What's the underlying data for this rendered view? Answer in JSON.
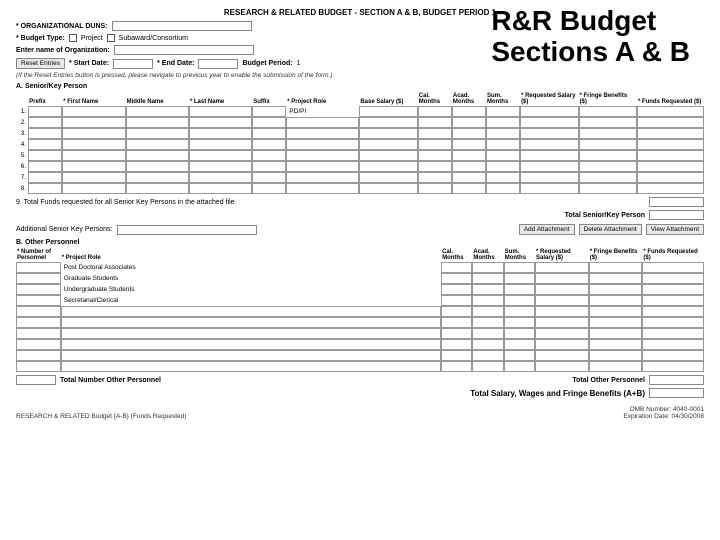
{
  "header": {
    "title": "RESEARCH & RELATED BUDGET - SECTION A & B, BUDGET PERIOD 1"
  },
  "overlay": {
    "line1": "R&R Budget",
    "line2": "Sections A & B"
  },
  "org": {
    "duns_label": "* ORGANIZATIONAL DUNS:",
    "budget_type_label": "* Budget Type:",
    "project_label": "Project",
    "subaward_label": "Subaward/Consortium",
    "enter_name_label": "Enter name of Organization:",
    "reset_btn": "Reset Entries",
    "start_date_label": "* Start Date:",
    "end_date_label": "* End Date:",
    "budget_period_label": "Budget Period:",
    "budget_period_value": "1",
    "note": "(If the Reset Entries button is pressed, please navigate to previous year to enable the submission of the form.)"
  },
  "sectionA": {
    "heading": "A. Senior/Key Person",
    "cols": {
      "prefix": "Prefix",
      "first": "* First Name",
      "middle": "Middle Name",
      "last": "* Last Name",
      "suffix": "Suffix",
      "role": "* Project Role",
      "base": "Base Salary ($)",
      "cal": "Cal. Months",
      "acad": "Acad. Months",
      "sum": "Sum. Months",
      "req_sal": "* Requested Salary ($)",
      "fringe": "* Fringe Benefits ($)",
      "funds": "* Funds Requested ($)"
    },
    "row2_role": "PD/PI",
    "total_label": "9.  Total Funds requested for all Senior Key Persons in the attached file",
    "total_senior_label": "Total Senior/Key Person",
    "additional_label": "Additional Senior Key Persons:",
    "add_attach_btn": "Add Attachment",
    "del_attach_btn": "Delete Attachment",
    "view_attach_btn": "View Attachment"
  },
  "sectionB": {
    "heading": "B. Other Personnel",
    "num_label": "* Number of Personnel",
    "role_label": "* Project Role",
    "roles": [
      "Post Doctoral Associates",
      "Graduate Students",
      "Undergraduate Students",
      "Secretarial/Clerical"
    ],
    "cols": {
      "cal": "Cal. Months",
      "acad": "Acad. Months",
      "sum": "Sum. Months",
      "req_sal": "* Requested Salary ($)",
      "fringe": "* Fringe Benefits ($)",
      "funds": "* Funds Requested ($)"
    },
    "total_num_label": "Total Number Other Personnel",
    "total_other_label": "Total Other Personnel",
    "grand_total_label": "Total Salary, Wages and Fringe Benefits (A+B)"
  },
  "footer": {
    "left": "RESEARCH & RELATED Budget {A-B} (Funds Requested)",
    "omb": "OMB Number: 4040-0001",
    "exp": "Expiration Date: 04/30/2008"
  }
}
